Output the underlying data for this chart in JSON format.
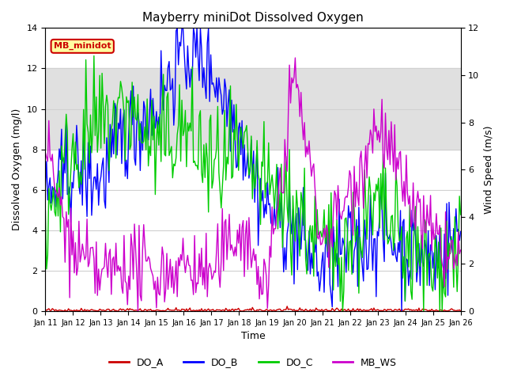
{
  "title": "Mayberry miniDot Dissolved Oxygen",
  "ylabel_left": "Dissolved Oxygen (mg/l)",
  "ylabel_right": "Wind Speed (m⁄s)",
  "xlabel": "Time",
  "ylim_left": [
    0,
    14
  ],
  "ylim_right": [
    0,
    12
  ],
  "xlim": [
    0,
    360
  ],
  "x_tick_labels": [
    "Jan 11",
    "Jan 12",
    "Jan 13",
    "Jan 14",
    "Jan 15",
    "Jan 16",
    "Jan 17",
    "Jan 18",
    "Jan 19",
    "Jan 20",
    "Jan 21",
    "Jan 22",
    "Jan 23",
    "Jan 24",
    "Jan 25",
    "Jan 26"
  ],
  "x_tick_positions": [
    0,
    24,
    48,
    72,
    96,
    120,
    144,
    168,
    192,
    216,
    240,
    264,
    288,
    312,
    336,
    360
  ],
  "shaded_band": [
    8,
    12
  ],
  "shaded_band_color": "#e0e0e0",
  "legend_box_label": "MB_minidot",
  "legend_box_bg": "#ffffa0",
  "legend_box_border": "#cc0000",
  "series_colors": {
    "DO_A": "#cc0000",
    "DO_B": "#0000ff",
    "DO_C": "#00cc00",
    "MB_WS": "#cc00cc"
  },
  "legend_labels": [
    "DO_A",
    "DO_B",
    "DO_C",
    "MB_WS"
  ],
  "legend_colors": [
    "#cc0000",
    "#0000ff",
    "#00cc00",
    "#cc00cc"
  ],
  "background_color": "#ffffff",
  "grid_color": "#d0d0d0"
}
